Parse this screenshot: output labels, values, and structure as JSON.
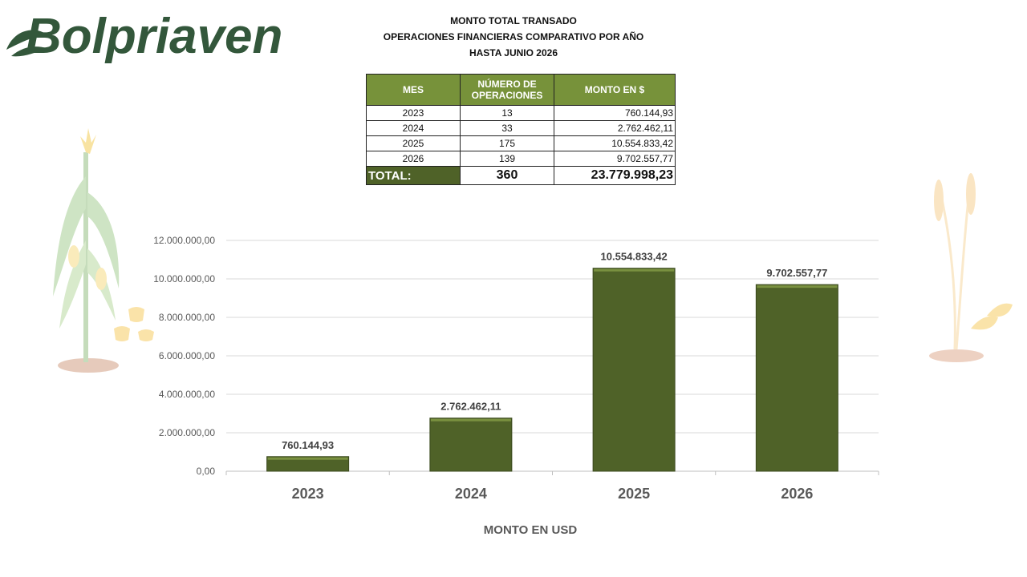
{
  "logo": {
    "text": "Bolpriaven"
  },
  "header": {
    "title_line1": "MONTO TOTAL TRANSADO",
    "title_line2": "OPERACIONES FINANCIERAS COMPARATIVO POR AÑO",
    "title_line3": "HASTA JUNIO 2026"
  },
  "table": {
    "headers": [
      "MES",
      "NÚMERO DE OPERACIONES",
      "MONTO EN $"
    ],
    "rows": [
      {
        "mes": "2023",
        "operaciones": "13",
        "monto": "760.144,93"
      },
      {
        "mes": "2024",
        "operaciones": "33",
        "monto": "2.762.462,11"
      },
      {
        "mes": "2025",
        "operaciones": "175",
        "monto": "10.554.833,42"
      },
      {
        "mes": "2026",
        "operaciones": "139",
        "monto": "9.702.557,77"
      }
    ],
    "total_label": "TOTAL:",
    "total_operaciones": "360",
    "total_monto": "23.779.998,23"
  },
  "colors": {
    "bar": "#4f6228",
    "header": "#77923a",
    "logo": "#33573b"
  },
  "chart_data": {
    "type": "bar",
    "categories": [
      "2023",
      "2024",
      "2025",
      "2026"
    ],
    "values": [
      760144.93,
      2762462.11,
      10554833.42,
      9702557.77
    ],
    "data_labels": [
      "760.144,93",
      "2.762.462,11",
      "10.554.833,42",
      "9.702.557,77"
    ],
    "title": "",
    "xlabel": "MONTO EN USD",
    "ylabel": "",
    "ylim": [
      0,
      12000000
    ],
    "yticks": [
      0,
      2000000,
      4000000,
      6000000,
      8000000,
      10000000,
      12000000
    ],
    "ytick_labels": [
      "0,00",
      "2.000.000,00",
      "4.000.000,00",
      "6.000.000,00",
      "8.000.000,00",
      "10.000.000,00",
      "12.000.000,00"
    ],
    "grid": true,
    "legend": "none"
  }
}
